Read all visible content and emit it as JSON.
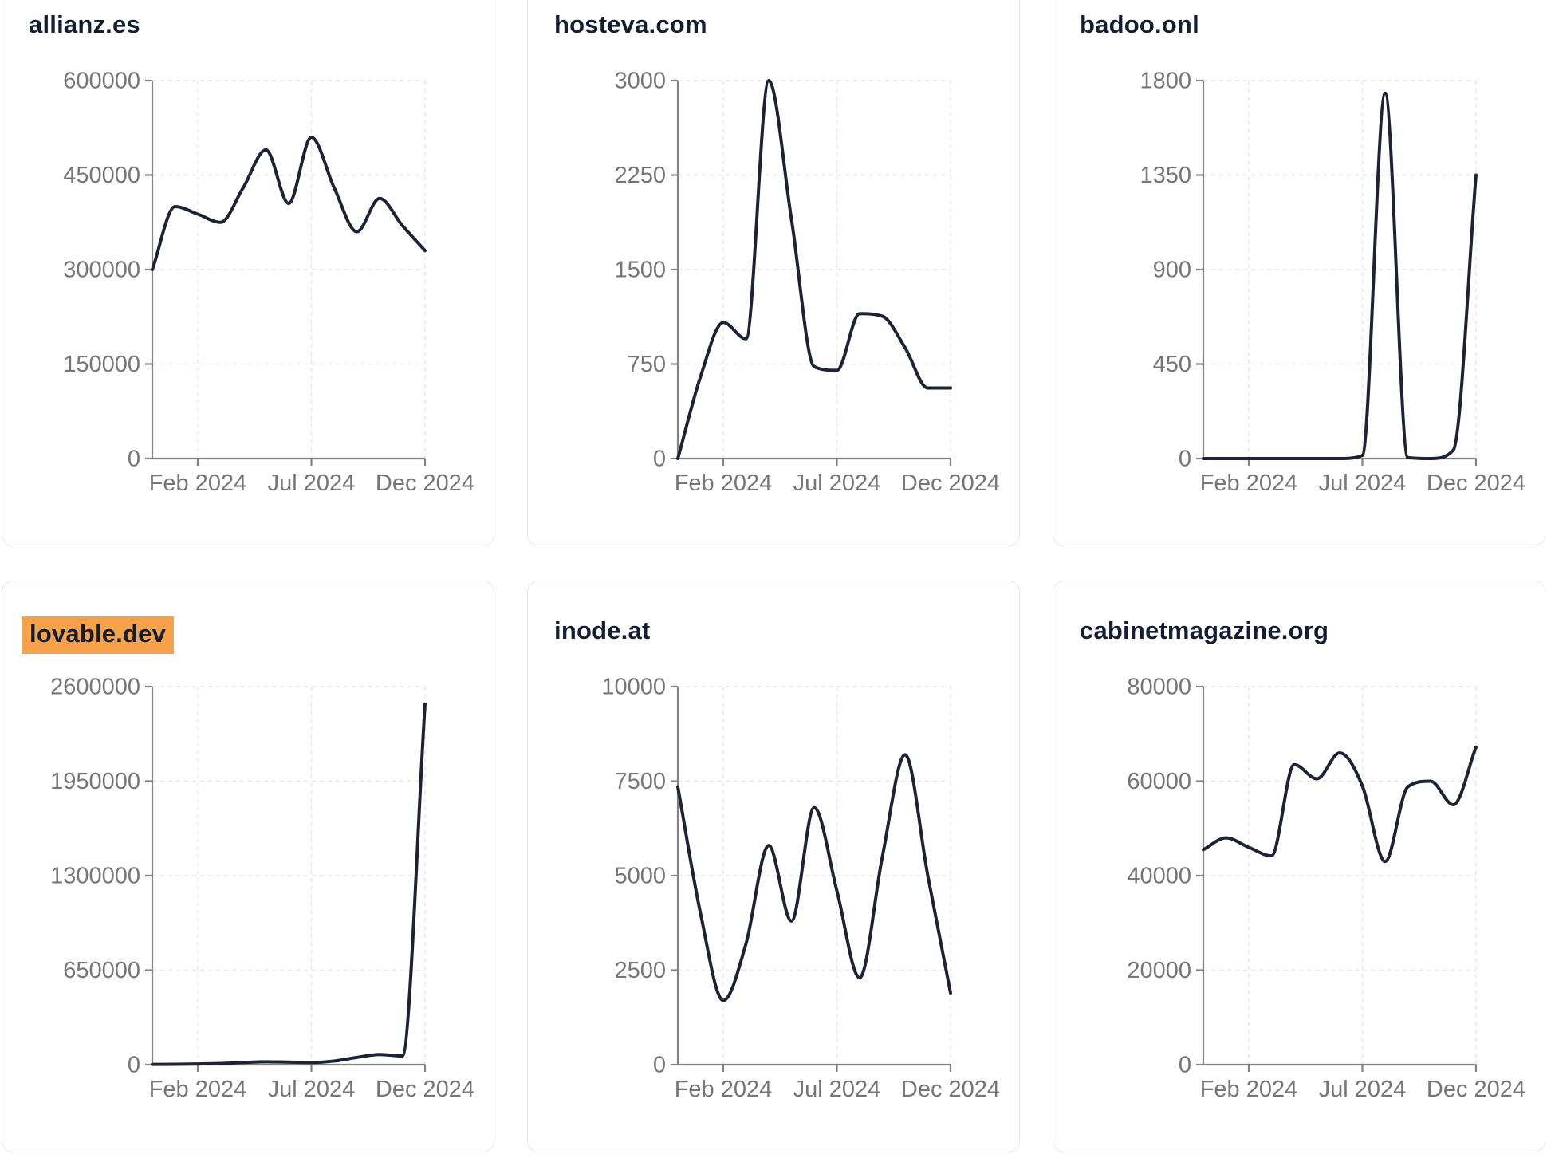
{
  "page": {
    "background_color": "#ffffff",
    "card_background": "#ffffff",
    "card_border_color": "#e2e6ef",
    "title_color": "#141e33"
  },
  "chart_style": {
    "line_color": "#1b2335",
    "axis_color": "#828282",
    "tick_label_color": "#767676",
    "grid_color": "#e6e6e6",
    "highlight_color": "#f5a24b",
    "grid": "dashed",
    "legend": "none"
  },
  "chart_data": [
    {
      "type": "line",
      "title": "allianz.es",
      "highlighted": false,
      "x": [
        "Dec 2023",
        "Jan 2024",
        "Feb 2024",
        "Mar 2024",
        "Apr 2024",
        "May 2024",
        "Jun 2024",
        "Jul 2024",
        "Aug 2024",
        "Sep 2024",
        "Oct 2024",
        "Nov 2024",
        "Dec 2024"
      ],
      "values": [
        300000,
        400000,
        388000,
        375000,
        430000,
        490000,
        405000,
        510000,
        430000,
        360000,
        413000,
        370000,
        330000
      ],
      "yticks": [
        0,
        150000,
        300000,
        450000,
        600000
      ],
      "ylim": [
        0,
        600000
      ],
      "xtick_labels": [
        "Feb 2024",
        "Jul 2024",
        "Dec 2024"
      ],
      "xtick_month_index": [
        2,
        7,
        12
      ]
    },
    {
      "type": "line",
      "title": "hosteva.com",
      "highlighted": false,
      "x": [
        "Dec 2023",
        "Jan 2024",
        "Feb 2024",
        "Mar 2024",
        "Apr 2024",
        "May 2024",
        "Jun 2024",
        "Jul 2024",
        "Aug 2024",
        "Sep 2024",
        "Oct 2024",
        "Nov 2024",
        "Dec 2024"
      ],
      "values": [
        0,
        650,
        1080,
        950,
        3000,
        1900,
        730,
        700,
        1150,
        1130,
        880,
        560,
        560
      ],
      "yticks": [
        0,
        750,
        1500,
        2250,
        3000
      ],
      "ylim": [
        0,
        3000
      ],
      "xtick_labels": [
        "Feb 2024",
        "Jul 2024",
        "Dec 2024"
      ],
      "xtick_month_index": [
        2,
        7,
        12
      ]
    },
    {
      "type": "line",
      "title": "badoo.onl",
      "highlighted": false,
      "x": [
        "Dec 2023",
        "Jan 2024",
        "Feb 2024",
        "Mar 2024",
        "Apr 2024",
        "May 2024",
        "Jun 2024",
        "Jul 2024",
        "Aug 2024",
        "Sep 2024",
        "Oct 2024",
        "Nov 2024",
        "Dec 2024"
      ],
      "values": [
        0,
        0,
        0,
        0,
        0,
        0,
        0,
        15,
        1740,
        5,
        0,
        40,
        1350
      ],
      "yticks": [
        0,
        450,
        900,
        1350,
        1800
      ],
      "ylim": [
        0,
        1800
      ],
      "xtick_labels": [
        "Feb 2024",
        "Jul 2024",
        "Dec 2024"
      ],
      "xtick_month_index": [
        2,
        7,
        12
      ]
    },
    {
      "type": "line",
      "title": "lovable.dev",
      "highlighted": true,
      "x": [
        "Dec 2023",
        "Jan 2024",
        "Feb 2024",
        "Mar 2024",
        "Apr 2024",
        "May 2024",
        "Jun 2024",
        "Jul 2024",
        "Aug 2024",
        "Sep 2024",
        "Oct 2024",
        "Nov 2024",
        "Dec 2024"
      ],
      "values": [
        2000,
        3000,
        5000,
        8000,
        15000,
        20000,
        18000,
        15000,
        25000,
        50000,
        70000,
        60000,
        2480000
      ],
      "yticks": [
        0,
        650000,
        1300000,
        1950000,
        2600000
      ],
      "ylim": [
        0,
        2600000
      ],
      "xtick_labels": [
        "Feb 2024",
        "Jul 2024",
        "Dec 2024"
      ],
      "xtick_month_index": [
        2,
        7,
        12
      ]
    },
    {
      "type": "line",
      "title": "inode.at",
      "highlighted": false,
      "x": [
        "Dec 2023",
        "Jan 2024",
        "Feb 2024",
        "Mar 2024",
        "Apr 2024",
        "May 2024",
        "Jun 2024",
        "Jul 2024",
        "Aug 2024",
        "Sep 2024",
        "Oct 2024",
        "Nov 2024",
        "Dec 2024"
      ],
      "values": [
        7350,
        4000,
        1700,
        3200,
        5800,
        3800,
        6800,
        4600,
        2300,
        5500,
        8200,
        5000,
        1900
      ],
      "yticks": [
        0,
        2500,
        5000,
        7500,
        10000
      ],
      "ylim": [
        0,
        10000
      ],
      "xtick_labels": [
        "Feb 2024",
        "Jul 2024",
        "Dec 2024"
      ],
      "xtick_month_index": [
        2,
        7,
        12
      ]
    },
    {
      "type": "line",
      "title": "cabinetmagazine.org",
      "highlighted": false,
      "x": [
        "Dec 2023",
        "Jan 2024",
        "Feb 2024",
        "Mar 2024",
        "Apr 2024",
        "May 2024",
        "Jun 2024",
        "Jul 2024",
        "Aug 2024",
        "Sep 2024",
        "Oct 2024",
        "Nov 2024",
        "Dec 2024"
      ],
      "values": [
        45500,
        48000,
        46000,
        44200,
        63500,
        60500,
        66000,
        59000,
        43000,
        58800,
        60000,
        55000,
        67200
      ],
      "yticks": [
        0,
        20000,
        40000,
        60000,
        80000
      ],
      "ylim": [
        0,
        80000
      ],
      "xtick_labels": [
        "Feb 2024",
        "Jul 2024",
        "Dec 2024"
      ],
      "xtick_month_index": [
        2,
        7,
        12
      ]
    }
  ]
}
